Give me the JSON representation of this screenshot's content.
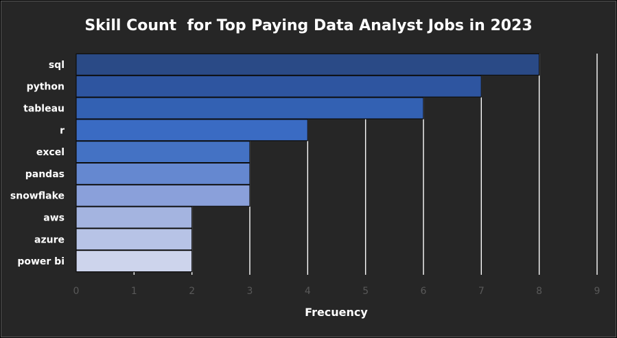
{
  "chart_data": {
    "type": "bar",
    "orientation": "horizontal",
    "title": "Skill Count  for Top Paying Data Analyst Jobs in 2023",
    "xlabel": "Frecuency",
    "ylabel": "",
    "categories": [
      "sql",
      "python",
      "tableau",
      "r",
      "excel",
      "pandas",
      "snowflake",
      "aws",
      "azure",
      "power bi"
    ],
    "values": [
      8,
      7,
      6,
      4,
      3,
      3,
      3,
      2,
      2,
      2
    ],
    "xlim": [
      0,
      9
    ],
    "xticks": [
      "0",
      "1",
      "2",
      "3",
      "4",
      "5",
      "6",
      "7",
      "8",
      "9"
    ],
    "grid": "vertical",
    "legend": "none",
    "bar_colors": [
      "#2a4a86",
      "#2e55a0",
      "#3361b3",
      "#3a6bc3",
      "#4472c4",
      "#6588d0",
      "#8aa0da",
      "#a4b4e0",
      "#b7c3e6",
      "#cdd4ec"
    ],
    "bar_border_color": "#0d0d0d",
    "grid_color": "#ffffff",
    "text_color": "#ffffff",
    "tick_color": "#595959",
    "background": "#262626"
  }
}
